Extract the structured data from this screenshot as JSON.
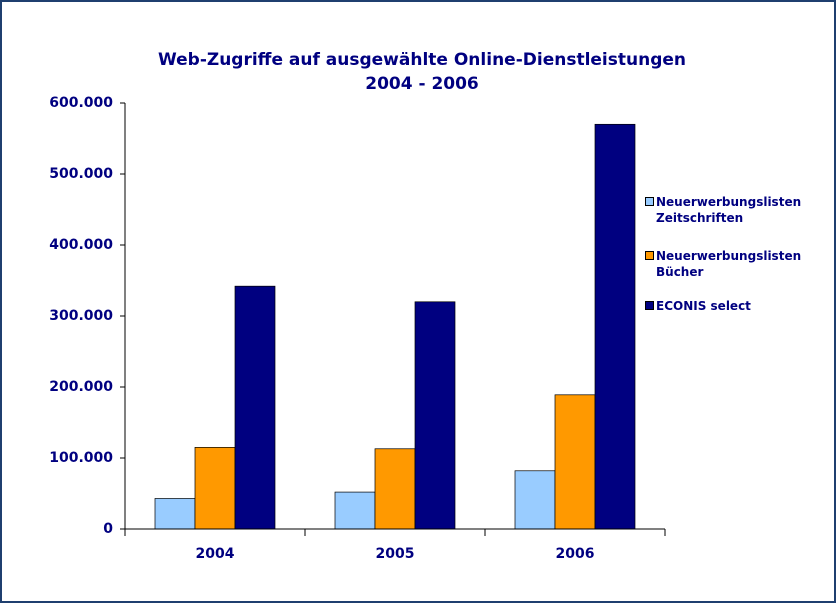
{
  "chart_data": {
    "type": "bar",
    "title": "Web-Zugriffe auf ausgewählte Online-Dienstleistungen",
    "subtitle": "2004 - 2006",
    "categories": [
      "2004",
      "2005",
      "2006"
    ],
    "series": [
      {
        "name": "Neuerwerbungslisten Zeitschriften",
        "color": "#99ccff",
        "values": [
          43000,
          52000,
          82000
        ]
      },
      {
        "name": "Neuerwerbungslisten Bücher",
        "color": "#ff9900",
        "values": [
          115000,
          113000,
          189000
        ]
      },
      {
        "name": "ECONIS select",
        "color": "#000080",
        "values": [
          342000,
          320000,
          570000
        ]
      }
    ],
    "ylim": [
      0,
      600000
    ],
    "yticks": [
      0,
      {
        "value": 100000,
        "label": "100.000"
      },
      {
        "value": 200000,
        "label": "200.000"
      },
      {
        "value": 300000,
        "label": "300.000"
      },
      {
        "value": 400000,
        "label": "400.000"
      },
      {
        "value": 500000,
        "label": "500.000"
      },
      {
        "value": 600000,
        "label": "600.000"
      }
    ],
    "grid": false,
    "legend": "right"
  }
}
